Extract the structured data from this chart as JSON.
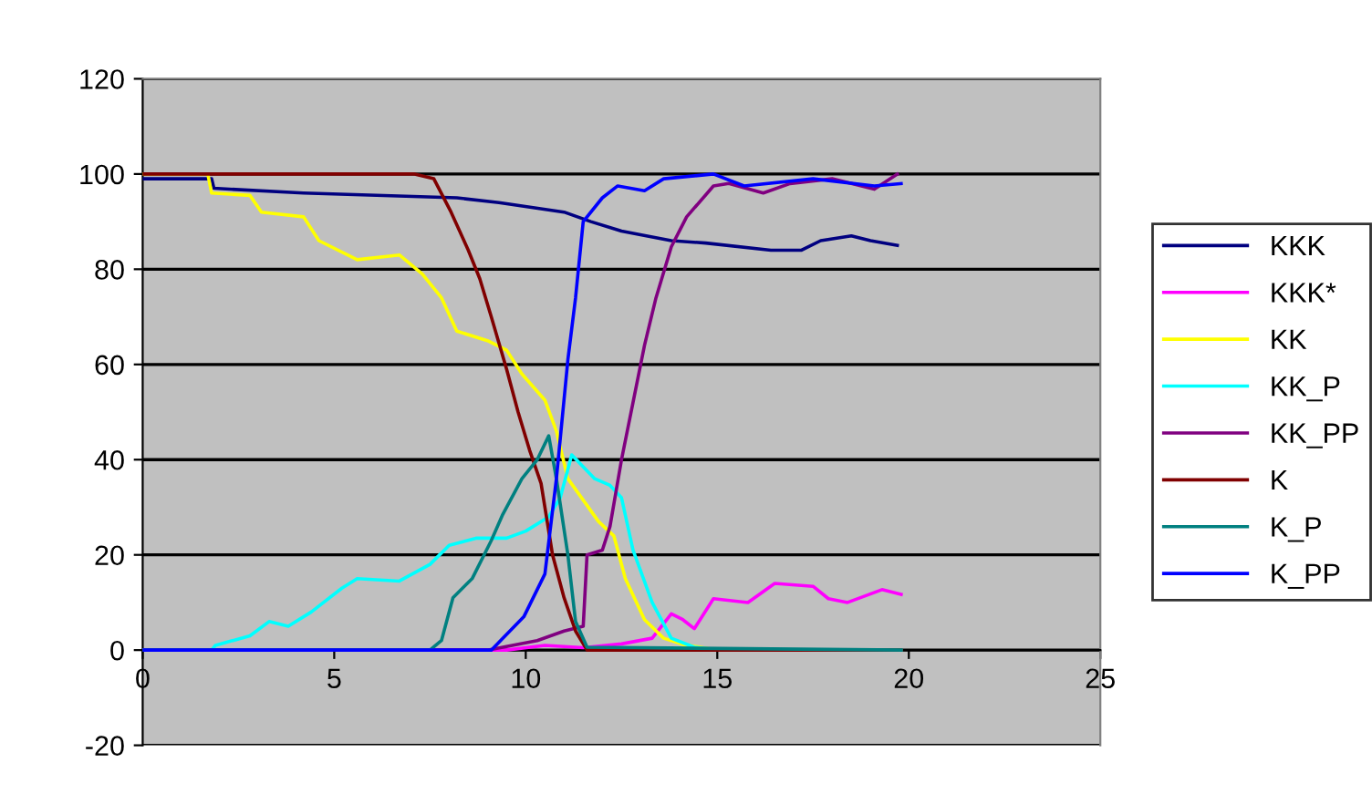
{
  "chart_data": {
    "type": "line",
    "xlim": [
      0,
      25
    ],
    "xticks": [
      0,
      5,
      10,
      15,
      20,
      25
    ],
    "ylim": [
      -20,
      120
    ],
    "yticks": [
      -20,
      0,
      20,
      40,
      60,
      80,
      100,
      120
    ],
    "grid": "y",
    "legend": "right",
    "line_style": "solid",
    "marker": "none",
    "series": [
      {
        "name": "KKK",
        "color": "#000080",
        "x": [
          0,
          1.8,
          1.86,
          4.2,
          8.2,
          9.3,
          11,
          11.7,
          12.5,
          13.8,
          14.7,
          16.4,
          17.2,
          17.7,
          18.5,
          19,
          19.7
        ],
        "values": [
          99,
          99,
          97,
          96,
          95,
          94,
          92,
          90,
          88,
          86,
          85.5,
          84,
          84,
          86,
          87,
          86,
          85
        ]
      },
      {
        "name": "KKK*",
        "color": "#ff00ff",
        "x": [
          0,
          9.5,
          10.5,
          11.5,
          12.5,
          13.3,
          13.8,
          14.1,
          14.4,
          14.9,
          15.8,
          16.5,
          17.5,
          17.9,
          18.4,
          19.3,
          19.8
        ],
        "values": [
          0,
          0,
          1,
          0.5,
          1.3,
          2.5,
          7.6,
          6.4,
          4.5,
          10.8,
          10,
          14,
          13.4,
          10.8,
          10,
          12.7,
          11.7
        ]
      },
      {
        "name": "KK",
        "color": "#ffff00",
        "x": [
          0,
          1.7,
          1.8,
          2.8,
          3.1,
          4.2,
          4.6,
          5.6,
          6.7,
          7.3,
          7.8,
          8.2,
          9,
          9.5,
          9.9,
          10.5,
          10.8,
          11.1,
          11.9,
          12.3,
          12.6,
          13.1,
          13.6,
          14.1,
          15,
          19.8
        ],
        "values": [
          100,
          100,
          96,
          95.5,
          92,
          91,
          86,
          82,
          83,
          79,
          74,
          67,
          65,
          63,
          58,
          52.5,
          46,
          36,
          27,
          24,
          15,
          6.4,
          2.5,
          1.2,
          0,
          0
        ]
      },
      {
        "name": "KK_P",
        "color": "#00ffff",
        "x": [
          0,
          1.8,
          1.9,
          2.8,
          3.3,
          3.8,
          4.4,
          5.2,
          5.6,
          6.7,
          7.5,
          8,
          8.7,
          9.5,
          10,
          10.6,
          10.9,
          11.2,
          11.8,
          12.2,
          12.5,
          12.8,
          13.3,
          13.8,
          14.4,
          15,
          19.8
        ],
        "values": [
          0,
          0,
          1,
          3,
          6,
          5,
          8,
          13,
          15,
          14.5,
          18,
          22,
          23.5,
          23.5,
          25,
          28,
          32,
          41,
          36,
          34.6,
          32,
          21,
          10,
          2.5,
          0.6,
          0,
          0
        ]
      },
      {
        "name": "KK_PP",
        "color": "#800080",
        "x": [
          0,
          9,
          10.3,
          11,
          11.5,
          11.6,
          12,
          12.2,
          12.5,
          12.8,
          13.1,
          13.4,
          13.8,
          14.2,
          14.9,
          15.3,
          16.2,
          16.9,
          18,
          19.1,
          19.7
        ],
        "values": [
          0,
          0,
          2,
          4,
          5,
          20,
          21,
          26,
          40,
          52,
          64,
          74,
          84.7,
          91,
          97.5,
          98,
          96,
          98,
          99,
          96.8,
          100
        ]
      },
      {
        "name": "K",
        "color": "#800000",
        "x": [
          0,
          7.1,
          7.6,
          8.05,
          8.5,
          8.8,
          9.1,
          9.5,
          9.8,
          10.1,
          10.4,
          10.7,
          11,
          11.3,
          11.6,
          19.8
        ],
        "values": [
          100,
          100,
          99,
          92,
          84,
          78,
          70,
          59,
          50,
          42,
          35,
          20,
          11,
          4,
          0,
          0
        ]
      },
      {
        "name": "K_P",
        "color": "#008080",
        "x": [
          0,
          7.5,
          7.8,
          8.1,
          8.6,
          9.1,
          9.4,
          9.9,
          10.3,
          10.6,
          10.8,
          11.1,
          11.3,
          11.6,
          19.8
        ],
        "values": [
          0,
          0,
          2,
          11,
          15,
          23,
          28.5,
          36,
          40,
          45,
          36,
          20,
          6,
          0.6,
          0
        ]
      },
      {
        "name": "K_PP",
        "color": "#0000ff",
        "x": [
          0,
          9.1,
          9.95,
          10.5,
          10.8,
          11.1,
          11.3,
          11.5,
          12,
          12.4,
          13.1,
          13.6,
          14.9,
          15.7,
          17.5,
          19.1,
          19.8
        ],
        "values": [
          0,
          0,
          7,
          16,
          36,
          61,
          74,
          90,
          95,
          97.5,
          96.5,
          99,
          100,
          97.5,
          99,
          97.5,
          98
        ]
      }
    ]
  }
}
